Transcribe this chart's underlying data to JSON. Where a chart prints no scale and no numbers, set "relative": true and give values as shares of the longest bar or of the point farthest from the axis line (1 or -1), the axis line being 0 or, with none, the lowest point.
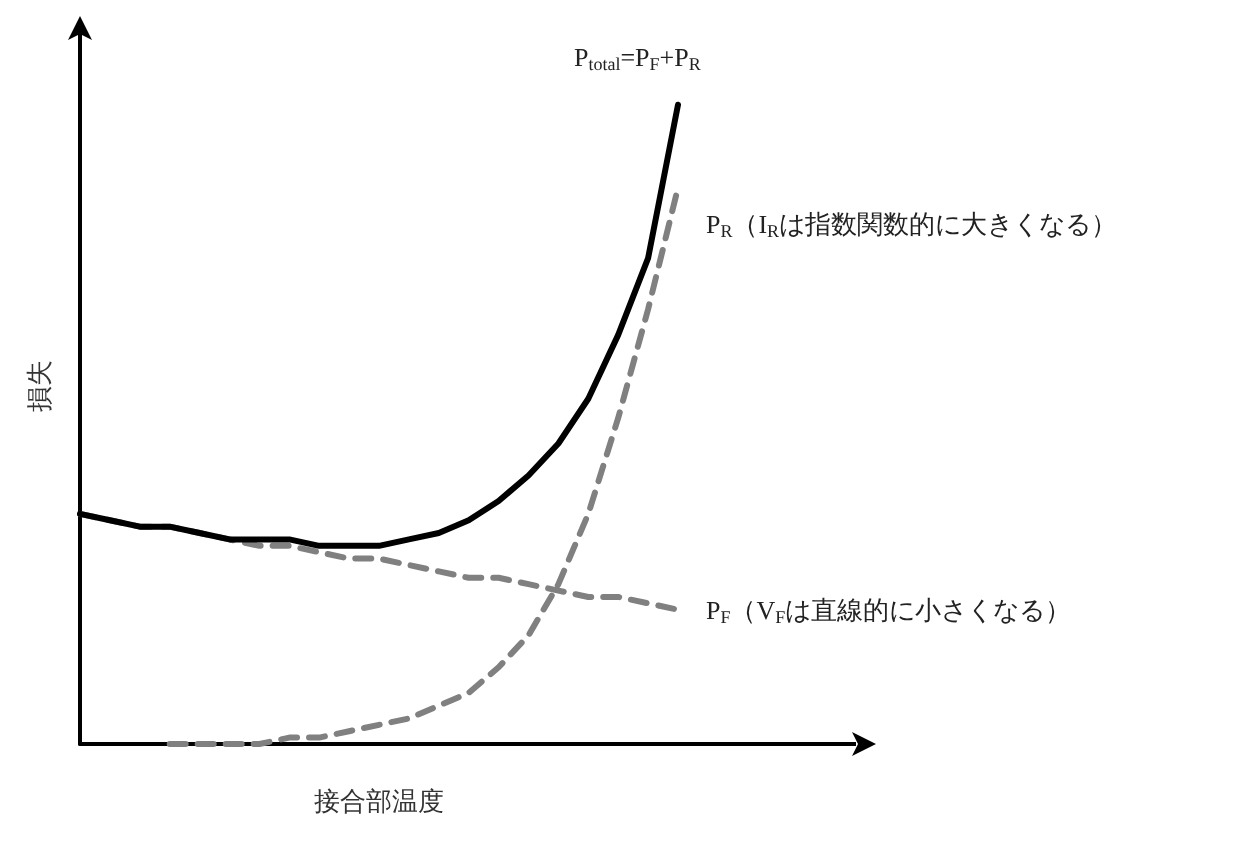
{
  "chart_data": {
    "type": "line",
    "relative": true,
    "xlabel": "接合部温度",
    "ylabel": "損失",
    "legend": false,
    "grid": false,
    "marker": "none",
    "categories": [
      null,
      null,
      null,
      null,
      null,
      null,
      null,
      null,
      null,
      null,
      null,
      null,
      null,
      null,
      null,
      null,
      null,
      null,
      null,
      null,
      null
    ],
    "series": [
      {
        "name": "P$_{total}$=P$_{F}$+P$_{R}$",
        "color": "#000000",
        "line_style": "solid",
        "values": [
          0.36,
          0.35,
          0.34,
          0.34,
          0.33,
          0.32,
          0.32,
          0.32,
          0.31,
          0.31,
          0.31,
          0.32,
          0.33,
          0.35,
          0.38,
          0.42,
          0.47,
          0.54,
          0.64,
          0.76,
          1.0
        ]
      },
      {
        "name": "P$_{R}$（I$_{R}$は指数関数的に大きくなる）",
        "color": "#808080",
        "line_style": "dashed",
        "values": [
          null,
          null,
          null,
          0,
          0,
          0,
          0,
          0.01,
          0.01,
          0.02,
          0.03,
          0.04,
          0.06,
          0.08,
          0.12,
          0.17,
          0.25,
          0.36,
          0.51,
          0.68,
          0.87
        ]
      },
      {
        "name": "P$_{F}$（V$_{F}$は直線的に小さくなる）",
        "color": "#808080",
        "line_style": "dashed",
        "values": [
          0.36,
          0.35,
          0.34,
          0.34,
          0.33,
          0.32,
          0.31,
          0.31,
          0.3,
          0.29,
          0.29,
          0.28,
          0.27,
          0.26,
          0.26,
          0.25,
          0.24,
          0.23,
          0.23,
          0.22,
          0.21
        ]
      }
    ]
  }
}
